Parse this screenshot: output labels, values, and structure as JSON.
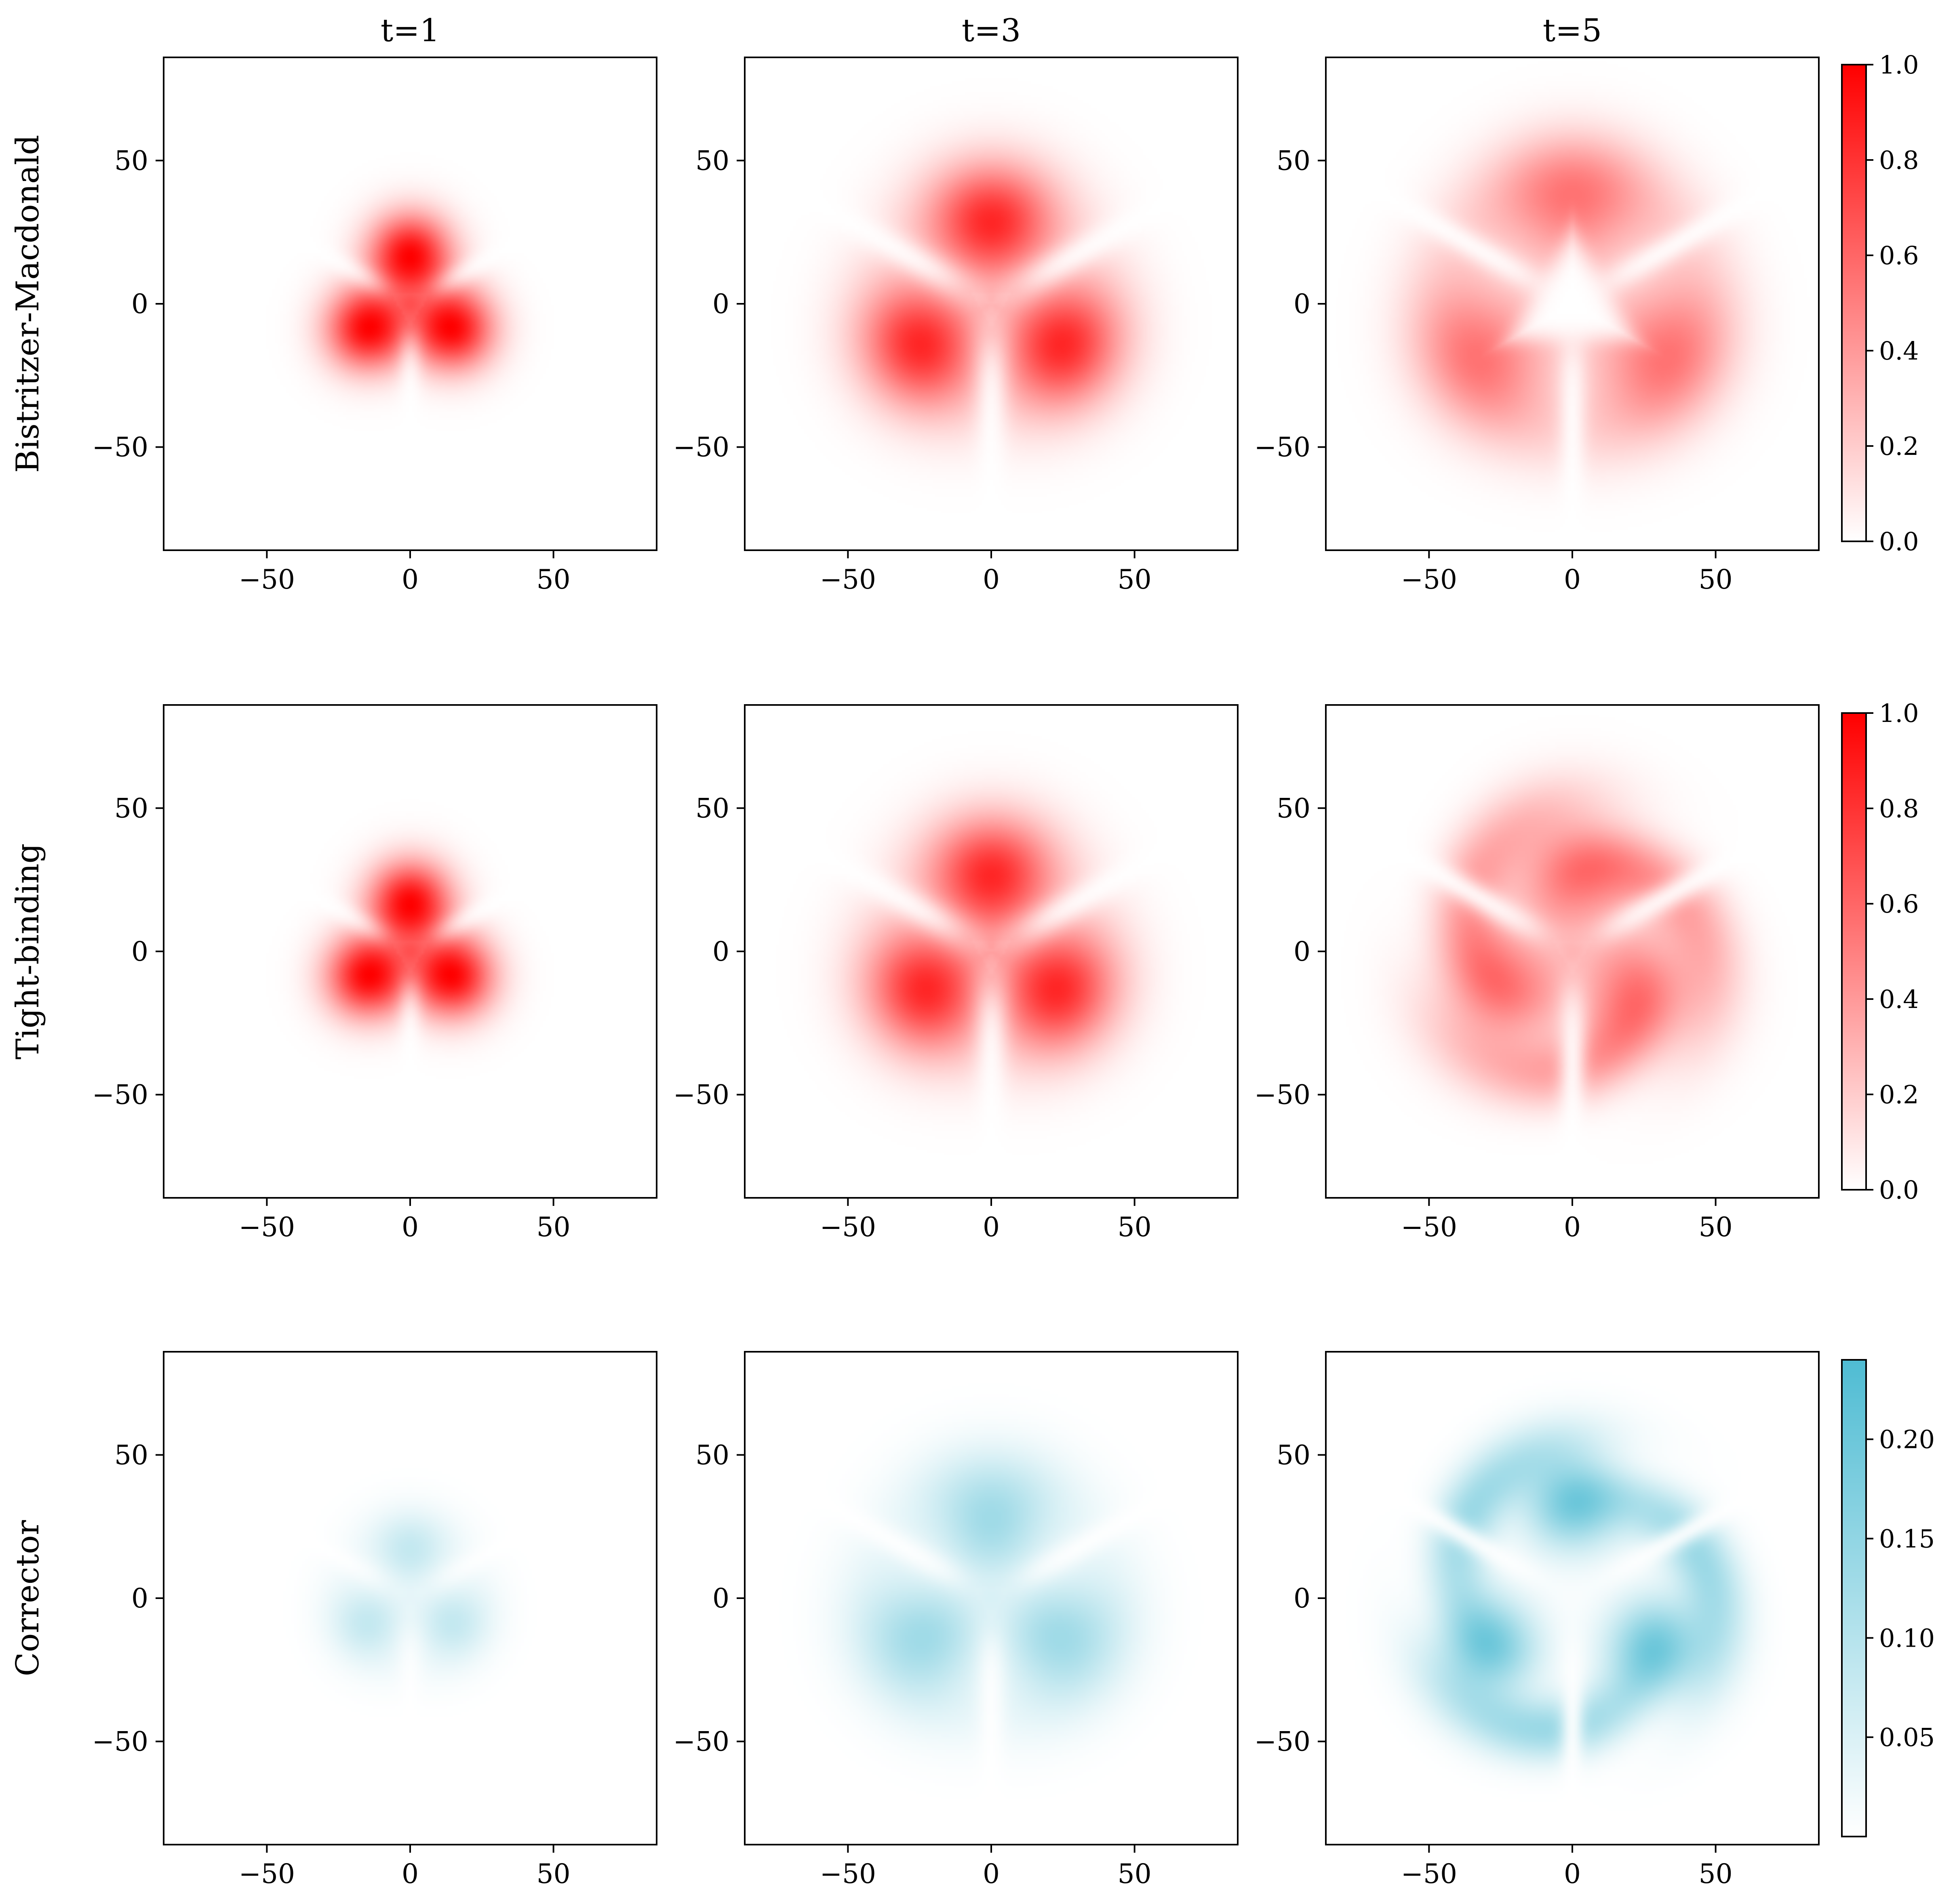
{
  "chart_data": {
    "type": "heatmap",
    "colors": {
      "bm": "#ff0000",
      "tb": "#ff0000",
      "corr": "#4fbcd3",
      "background": "#ffffff",
      "frame": "#000000"
    },
    "axis": {
      "xlim": [
        -86,
        86
      ],
      "ylim": [
        -86,
        86
      ],
      "xticks": [
        -50,
        0,
        50
      ],
      "yticks": [
        -50,
        0,
        50
      ],
      "xtick_labels": [
        "−50",
        "0",
        "50"
      ],
      "ytick_labels": [
        "−50",
        "0",
        "50"
      ]
    },
    "columns": [
      {
        "key": "t1",
        "title": "t=1"
      },
      {
        "key": "t3",
        "title": "t=3"
      },
      {
        "key": "t5",
        "title": "t=5"
      }
    ],
    "rows": [
      {
        "key": "bm",
        "label": "Bistritzer-Macdonald",
        "color": "#ff0000",
        "colorbar": {
          "range": [
            0,
            1.0
          ],
          "ticks": [
            0.0,
            0.2,
            0.4,
            0.6,
            0.8,
            1.0
          ],
          "tick_labels": [
            "0.0",
            "0.2",
            "0.4",
            "0.6",
            "0.8",
            "1.0"
          ]
        },
        "panels": [
          {
            "col": "t1",
            "peak": 1.0,
            "pattern": "three-lobe",
            "lobe_radius": 17,
            "lobe_width": 10,
            "sep": 3.0,
            "rot": 90,
            "ring": 0
          },
          {
            "col": "t3",
            "peak": 0.85,
            "pattern": "three-lobe-ring",
            "lobe_radius": 26,
            "lobe_width": 14,
            "sep": 4.0,
            "rot": 90,
            "ring": 32,
            "ring_width": 14
          },
          {
            "col": "t5",
            "peak": 0.55,
            "pattern": "ring-triangle",
            "lobe_radius": 30,
            "lobe_width": 16,
            "sep": 3.5,
            "rot": 90,
            "ring": 44,
            "ring_width": 12
          }
        ]
      },
      {
        "key": "tb",
        "label": "Tight-binding",
        "color": "#ff0000",
        "colorbar": {
          "range": [
            0,
            1.0
          ],
          "ticks": [
            0.0,
            0.2,
            0.4,
            0.6,
            0.8,
            1.0
          ],
          "tick_labels": [
            "0.0",
            "0.2",
            "0.4",
            "0.6",
            "0.8",
            "1.0"
          ]
        },
        "panels": [
          {
            "col": "t1",
            "peak": 1.0,
            "pattern": "three-lobe",
            "lobe_radius": 17,
            "lobe_width": 10,
            "sep": 3.0,
            "rot": 90,
            "ring": 0
          },
          {
            "col": "t3",
            "peak": 0.85,
            "pattern": "three-lobe-ring",
            "lobe_radius": 24,
            "lobe_width": 14,
            "sep": 4.0,
            "rot": 90,
            "ring": 30,
            "ring_width": 14
          },
          {
            "col": "t5",
            "peak": 0.6,
            "pattern": "spiral",
            "lobe_radius": 28,
            "lobe_width": 16,
            "sep": 3.5,
            "rot": 90,
            "ring": 40,
            "ring_width": 12
          }
        ]
      },
      {
        "key": "corr",
        "label": "Corrector",
        "color": "#4fbcd3",
        "colorbar": {
          "range": [
            0,
            0.24
          ],
          "ticks": [
            0.05,
            0.1,
            0.15,
            0.2
          ],
          "tick_labels": [
            "0.05",
            "0.10",
            "0.15",
            "0.20"
          ]
        },
        "panels": [
          {
            "col": "t1",
            "peak": 0.08,
            "pattern": "three-lobe",
            "lobe_radius": 14,
            "lobe_width": 8,
            "sep": 3.0,
            "rot": 90,
            "ring": 22,
            "ring_width": 8
          },
          {
            "col": "t3",
            "peak": 0.13,
            "pattern": "three-lobe-ring",
            "lobe_radius": 22,
            "lobe_width": 12,
            "sep": 3.5,
            "rot": 90,
            "ring": 38,
            "ring_width": 12
          },
          {
            "col": "t5",
            "peak": 0.2,
            "pattern": "spiral",
            "lobe_radius": 34,
            "lobe_width": 12,
            "sep": 3.0,
            "rot": 90,
            "ring": 46,
            "ring_width": 10
          }
        ]
      }
    ]
  }
}
